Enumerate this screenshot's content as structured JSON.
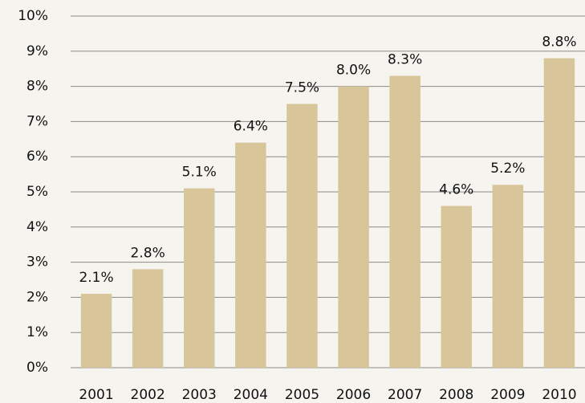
{
  "chart_data": {
    "type": "bar",
    "categories": [
      "2001",
      "2002",
      "2003",
      "2004",
      "2005",
      "2006",
      "2007",
      "2008",
      "2009",
      "2010"
    ],
    "values": [
      2.1,
      2.8,
      5.1,
      6.4,
      7.5,
      8.0,
      8.3,
      4.6,
      5.2,
      8.8
    ],
    "value_labels": [
      "2.1%",
      "2.8%",
      "5.1%",
      "6.4%",
      "7.5%",
      "8.0%",
      "8.3%",
      "4.6%",
      "5.2%",
      "8.8%"
    ],
    "color": "#d8c59a",
    "ylim": [
      0,
      10
    ],
    "yticks": [
      {
        "value": 0,
        "label": "0%"
      },
      {
        "value": 1,
        "label": "1%"
      },
      {
        "value": 2,
        "label": "2%"
      },
      {
        "value": 3,
        "label": "3%"
      },
      {
        "value": 4,
        "label": "4%"
      },
      {
        "value": 5,
        "label": "5%"
      },
      {
        "value": 6,
        "label": "6%"
      },
      {
        "value": 7,
        "label": "7%"
      },
      {
        "value": 8,
        "label": "8%"
      },
      {
        "value": 9,
        "label": "9%"
      },
      {
        "value": 10,
        "label": "10%"
      }
    ],
    "grid": true
  }
}
